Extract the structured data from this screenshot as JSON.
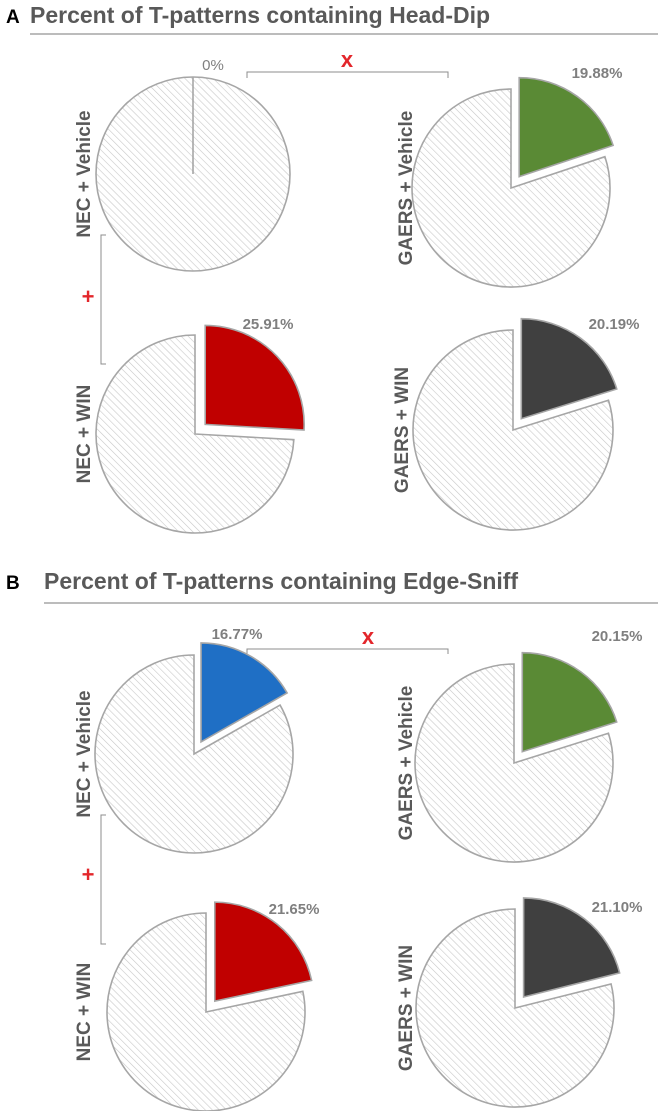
{
  "markers": {
    "x_label": "x",
    "plus_label": "+"
  },
  "colors": {
    "nec_vehicle_headdip": "#4f8a3a",
    "blue": "#1f6fc5",
    "green": "#5a8a35",
    "red": "#c00000",
    "dark": "#404040",
    "hatch": "#bfbfbf",
    "outline": "#a6a6a6"
  },
  "chart_data": [
    {
      "type": "pie",
      "panel": "A",
      "title": "Percent of T-patterns containing Head-Dip",
      "charts": [
        {
          "group": "NEC + Vehicle",
          "value": 0,
          "label": "0%",
          "color": "#5a8a35"
        },
        {
          "group": "GAERS + Vehicle",
          "value": 19.88,
          "label": "19.88%",
          "color": "#5a8a35"
        },
        {
          "group": "NEC + WIN",
          "value": 25.91,
          "label": "25.91%",
          "color": "#c00000"
        },
        {
          "group": "GAERS + WIN",
          "value": 20.19,
          "label": "20.19%",
          "color": "#404040"
        }
      ]
    },
    {
      "type": "pie",
      "panel": "B",
      "title": "Percent of T-patterns containing Edge-Sniff",
      "charts": [
        {
          "group": "NEC + Vehicle",
          "value": 16.77,
          "label": "16.77%",
          "color": "#1f6fc5"
        },
        {
          "group": "GAERS + Vehicle",
          "value": 20.15,
          "label": "20.15%",
          "color": "#5a8a35"
        },
        {
          "group": "NEC + WIN",
          "value": 21.65,
          "label": "21.65%",
          "color": "#c00000"
        },
        {
          "group": "GAERS + WIN",
          "value": 21.1,
          "label": "21.10%",
          "color": "#404040"
        }
      ]
    }
  ]
}
